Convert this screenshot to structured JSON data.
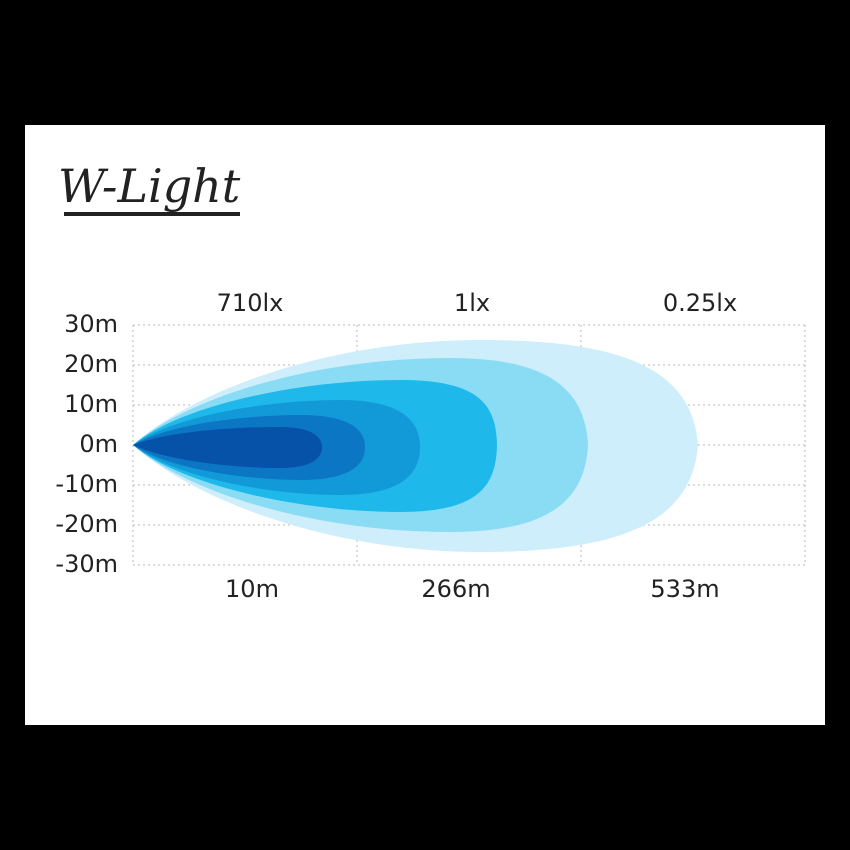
{
  "title": "W-Light",
  "top_labels": [
    "710lx",
    "1lx",
    "0.25lx"
  ],
  "y_labels": [
    "30m",
    "20m",
    "10m",
    "0m",
    "-10m",
    "-20m",
    "-30m"
  ],
  "bottom_labels": [
    "10m",
    "266m",
    "533m"
  ]
}
